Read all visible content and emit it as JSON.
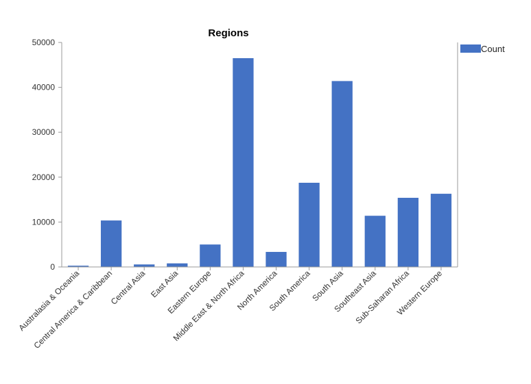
{
  "chart_data": {
    "type": "bar",
    "title": "Regions",
    "xlabel": "",
    "ylabel": "",
    "ylim": [
      0,
      50000
    ],
    "yticks": [
      0,
      10000,
      20000,
      30000,
      40000,
      50000
    ],
    "grid": false,
    "legend_position": "top-right",
    "bar_color": "#4472C4",
    "categories": [
      "Australasia & Oceania",
      "Central America & Caribbean",
      "Central Asia",
      "East Asia",
      "Eastern Europe",
      "Middle East & North Africa",
      "North America",
      "South America",
      "South Asia",
      "Southeast Asia",
      "Sub-Saharan Africa",
      "Western Europe"
    ],
    "series": [
      {
        "name": "Count",
        "values": [
          280,
          10350,
          560,
          800,
          5000,
          46500,
          3350,
          18750,
          41400,
          11400,
          15400,
          16300
        ]
      }
    ]
  }
}
